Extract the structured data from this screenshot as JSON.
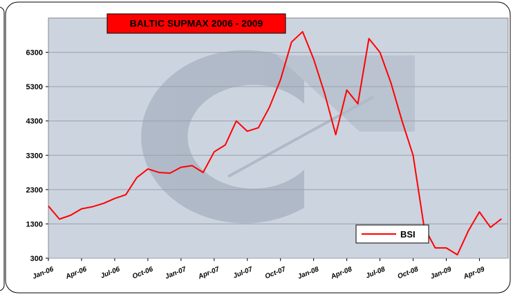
{
  "chart_data": {
    "type": "line",
    "title": "BALTIC SUPMAX 2006 - 2009",
    "x": [
      "2006-01",
      "2006-02",
      "2006-03",
      "2006-04",
      "2006-05",
      "2006-06",
      "2006-07",
      "2006-08",
      "2006-09",
      "2006-10",
      "2006-11",
      "2006-12",
      "2007-01",
      "2007-02",
      "2007-03",
      "2007-04",
      "2007-05",
      "2007-06",
      "2007-07",
      "2007-08",
      "2007-09",
      "2007-10",
      "2007-11",
      "2007-12",
      "2008-01",
      "2008-02",
      "2008-03",
      "2008-04",
      "2008-05",
      "2008-06",
      "2008-07",
      "2008-08",
      "2008-09",
      "2008-10",
      "2008-11",
      "2008-12",
      "2009-01",
      "2009-02",
      "2009-03",
      "2009-04",
      "2009-05",
      "2009-06"
    ],
    "series": [
      {
        "name": "BSI",
        "color": "#ff0000",
        "values": [
          1820,
          1440,
          1550,
          1740,
          1800,
          1900,
          2040,
          2150,
          2650,
          2900,
          2800,
          2780,
          2950,
          3000,
          2800,
          3400,
          3600,
          4300,
          4000,
          4100,
          4700,
          5500,
          6600,
          6900,
          6100,
          5100,
          3900,
          5200,
          4800,
          6700,
          6300,
          5400,
          4300,
          3300,
          1200,
          600,
          600,
          400,
          1100,
          1650,
          1200,
          1450
        ]
      }
    ],
    "xlim": [
      "2006-01",
      "2009-06"
    ],
    "xticks": [
      {
        "value": "2006-01",
        "label": "Jan-06"
      },
      {
        "value": "2006-04",
        "label": "Apr-06"
      },
      {
        "value": "2006-07",
        "label": "Jul-06"
      },
      {
        "value": "2006-10",
        "label": "Oct-06"
      },
      {
        "value": "2007-01",
        "label": "Jan-07"
      },
      {
        "value": "2007-04",
        "label": "Apr-07"
      },
      {
        "value": "2007-07",
        "label": "Jul-07"
      },
      {
        "value": "2007-10",
        "label": "Oct-07"
      },
      {
        "value": "2008-01",
        "label": "Jan-08"
      },
      {
        "value": "2008-04",
        "label": "Apr-08"
      },
      {
        "value": "2008-07",
        "label": "Jul-08"
      },
      {
        "value": "2008-10",
        "label": "Oct-08"
      },
      {
        "value": "2009-01",
        "label": "Jan-09"
      },
      {
        "value": "2009-04",
        "label": "Apr-09"
      }
    ],
    "ylim": [
      300,
      7300
    ],
    "yticks": [
      300,
      1300,
      2300,
      3300,
      4300,
      5300,
      6300
    ],
    "grid": true,
    "legend": "lower right"
  }
}
